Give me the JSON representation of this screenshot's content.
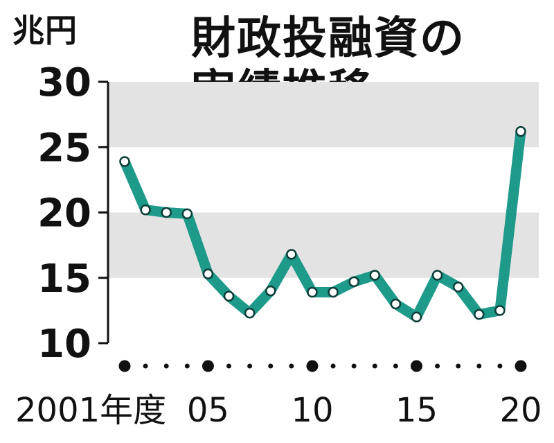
{
  "header": {
    "unit": "兆円",
    "title_line1": "財政投融資の",
    "title_line2": "実績推移"
  },
  "colors": {
    "line": "#1e9a8a",
    "band": "#e3e3e3",
    "axis": "#111111",
    "marker_fill": "#ffffff"
  },
  "chart_data": {
    "type": "line",
    "title": "財政投融資の実績推移",
    "ylabel": "兆円",
    "xlabel": "",
    "ylim": [
      10,
      30
    ],
    "yticks": [
      10,
      15,
      20,
      25,
      30
    ],
    "ytick_labels": [
      "10",
      "15",
      "20",
      "25",
      "30"
    ],
    "shaded_bands": [
      [
        15,
        20
      ],
      [
        25,
        30
      ]
    ],
    "x": [
      2001,
      2002,
      2003,
      2004,
      2005,
      2006,
      2007,
      2008,
      2009,
      2010,
      2011,
      2012,
      2013,
      2014,
      2015,
      2016,
      2017,
      2018,
      2019,
      2020
    ],
    "xtick_labels": [
      {
        "x": 2001,
        "label": "2001年度"
      },
      {
        "x": 2005,
        "label": "05"
      },
      {
        "x": 2010,
        "label": "10"
      },
      {
        "x": 2015,
        "label": "15"
      },
      {
        "x": 2020,
        "label": "20"
      }
    ],
    "major_dot_years": [
      2001,
      2005,
      2010,
      2015,
      2020
    ],
    "series": [
      {
        "values": [
          23.9,
          20.2,
          20.0,
          19.9,
          15.3,
          13.6,
          12.3,
          14.0,
          16.8,
          13.9,
          13.9,
          14.7,
          15.2,
          13.0,
          12.0,
          15.2,
          14.3,
          12.2,
          12.5,
          26.2
        ]
      }
    ]
  }
}
